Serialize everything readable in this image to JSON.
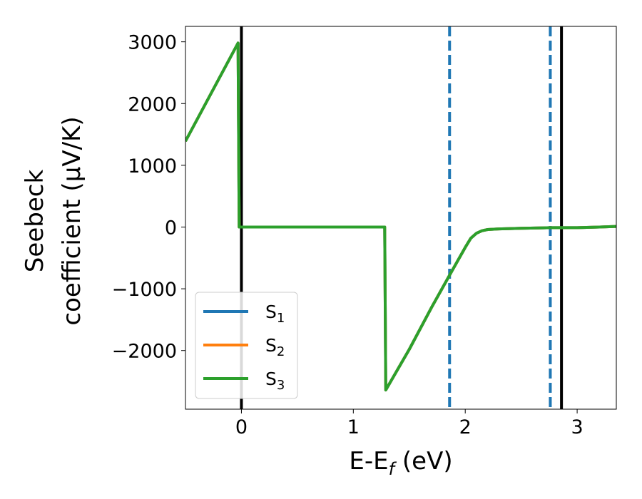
{
  "chart_data": {
    "type": "line",
    "xlabel": "E-E_f (eV)",
    "xlabel_main": "E-E",
    "xlabel_sub": "f",
    "xlabel_tail": " (eV)",
    "ylabel_line1": "Seebeck",
    "ylabel_line2": "coefficient  (μV/K)",
    "xlim": [
      -0.5,
      3.35
    ],
    "ylim": [
      -2950,
      3250
    ],
    "x_ticks": [
      0,
      1,
      2,
      3
    ],
    "x_tick_labels": [
      "0",
      "1",
      "2",
      "3"
    ],
    "y_ticks": [
      3000,
      2000,
      1000,
      0,
      -1000,
      -2000
    ],
    "y_tick_labels": [
      "3000",
      "2000",
      "1000",
      "0",
      "−1000",
      "−2000"
    ],
    "grid": false,
    "legend_position": "lower-left",
    "vertical_lines": [
      {
        "x": 0.0,
        "style": "solid",
        "color": "#000000"
      },
      {
        "x": 1.86,
        "style": "dashed",
        "color": "#1f77b4"
      },
      {
        "x": 2.76,
        "style": "dashed",
        "color": "#1f77b4"
      },
      {
        "x": 2.86,
        "style": "solid",
        "color": "#000000"
      }
    ],
    "series": [
      {
        "name": "S1",
        "label_main": "S",
        "label_sub": "1",
        "color": "#1f77b4",
        "x": [
          -0.5,
          -0.03,
          -0.02,
          1.28,
          1.29,
          1.5,
          1.7,
          1.86,
          2.0,
          2.05,
          2.1,
          2.15,
          2.2,
          2.3,
          2.5,
          2.76,
          3.0,
          3.2,
          3.35
        ],
        "y": [
          1390,
          2980,
          0,
          0,
          -2640,
          -1980,
          -1300,
          -780,
          -330,
          -180,
          -100,
          -60,
          -40,
          -30,
          -20,
          -10,
          -10,
          0,
          10
        ]
      },
      {
        "name": "S2",
        "label_main": "S",
        "label_sub": "2",
        "color": "#ff7f0e",
        "x": [
          -0.5,
          -0.03,
          -0.02,
          1.28,
          1.29,
          1.5,
          1.7,
          1.86,
          2.0,
          2.05,
          2.1,
          2.15,
          2.2,
          2.3,
          2.5,
          2.76,
          3.0,
          3.2,
          3.35
        ],
        "y": [
          1390,
          2980,
          0,
          0,
          -2640,
          -1980,
          -1300,
          -780,
          -330,
          -180,
          -100,
          -60,
          -40,
          -30,
          -20,
          -10,
          -10,
          0,
          10
        ]
      },
      {
        "name": "S3",
        "label_main": "S",
        "label_sub": "3",
        "color": "#2ca02c",
        "x": [
          -0.5,
          -0.03,
          -0.02,
          1.28,
          1.29,
          1.5,
          1.7,
          1.86,
          2.0,
          2.05,
          2.1,
          2.15,
          2.2,
          2.3,
          2.5,
          2.76,
          3.0,
          3.2,
          3.35
        ],
        "y": [
          1390,
          2980,
          0,
          0,
          -2640,
          -1980,
          -1300,
          -780,
          -330,
          -180,
          -100,
          -60,
          -40,
          -30,
          -20,
          -10,
          -10,
          0,
          10
        ]
      }
    ]
  }
}
